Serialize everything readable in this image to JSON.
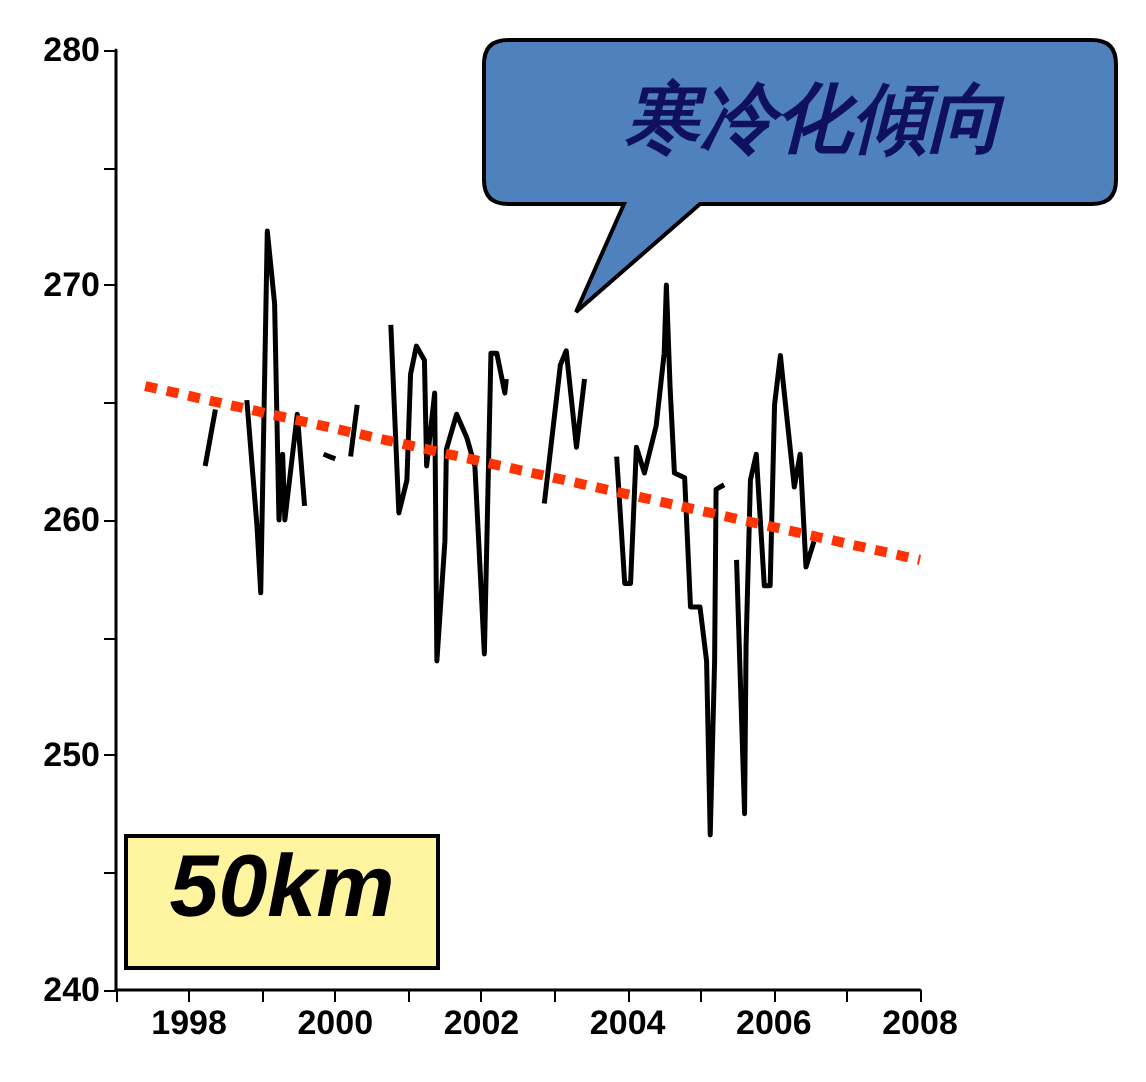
{
  "chart_data": {
    "type": "line",
    "xlim": [
      1997,
      2008
    ],
    "ylim": [
      240,
      280
    ],
    "xticks": [
      {
        "value": 1997,
        "label": null
      },
      1998,
      {
        "value": 1999,
        "label": null
      },
      2000,
      {
        "value": 2001,
        "label": null
      },
      2002,
      {
        "value": 2003,
        "label": null
      },
      2004,
      {
        "value": 2005,
        "label": null
      },
      2006,
      {
        "value": 2007,
        "label": null
      },
      2008
    ],
    "yticks": [
      240,
      {
        "value": 245,
        "label": null
      },
      250,
      {
        "value": 255,
        "label": null
      },
      260,
      {
        "value": 265,
        "label": null
      },
      270,
      {
        "value": 275,
        "label": null
      },
      280
    ],
    "grid": false,
    "marker": "none",
    "annotations": [
      "寒冷化傾向",
      "50km"
    ],
    "series": [
      {
        "color": "#000000",
        "line_style": "solid",
        "x": [
          1998.22,
          1998.36,
          1998.6,
          1998.79,
          1998.93,
          1998.98,
          1999.07,
          1999.17,
          1999.23,
          1999.28,
          1999.31,
          1999.48,
          1999.58,
          1999.7,
          1999.84,
          2000.0,
          2000.1,
          2000.21,
          2000.3,
          2000.5,
          2000.76,
          2000.87,
          2000.98,
          2001.03,
          2001.11,
          2001.22,
          2001.25,
          2001.36,
          2001.39,
          2001.5,
          2001.52,
          2001.66,
          2001.8,
          2001.91,
          2002.04,
          2002.13,
          2002.21,
          2002.32,
          2002.34,
          2002.6,
          2002.86,
          2003.08,
          2003.16,
          2003.3,
          2003.41,
          2003.6,
          2003.85,
          2003.96,
          2004.04,
          2004.12,
          2004.23,
          2004.39,
          2004.5,
          2004.53,
          2004.58,
          2004.64,
          2004.78,
          2004.86,
          2004.99,
          2005.08,
          2005.13,
          2005.19,
          2005.21,
          2005.32,
          2005.4,
          2005.49,
          2005.6,
          2005.62,
          2005.68,
          2005.76,
          2005.87,
          2005.95,
          2006.01,
          2006.09,
          2006.14,
          2006.28,
          2006.36,
          2006.44,
          2006.55
        ],
        "values": [
          262.3,
          264.7,
          null,
          265.1,
          259.7,
          256.9,
          272.3,
          269.2,
          260,
          262.8,
          260,
          264.5,
          260.6,
          null,
          262.8,
          262.6,
          null,
          262.7,
          264.9,
          null,
          268.3,
          260.3,
          261.7,
          266.2,
          267.4,
          266.8,
          262.3,
          265.4,
          254,
          259.1,
          263,
          264.5,
          263.5,
          262.3,
          254.3,
          267.1,
          267.1,
          265.4,
          266,
          null,
          260.7,
          266.6,
          267.2,
          263.1,
          266,
          null,
          262.7,
          257.3,
          257.3,
          263.1,
          262,
          264,
          267.1,
          270,
          265.7,
          262,
          261.8,
          256.3,
          256.3,
          254,
          246.6,
          254,
          261.3,
          261.5,
          null,
          258.3,
          247.5,
          254.6,
          261.7,
          262.8,
          257.2,
          257.2,
          264.9,
          267,
          265.5,
          261.4,
          262.8,
          258,
          259.1
        ]
      },
      {
        "color": "#ff3300",
        "line_style": "dashed",
        "x": [
          1997.4,
          2008
        ],
        "values": [
          265.7,
          258.3
        ]
      }
    ]
  }
}
